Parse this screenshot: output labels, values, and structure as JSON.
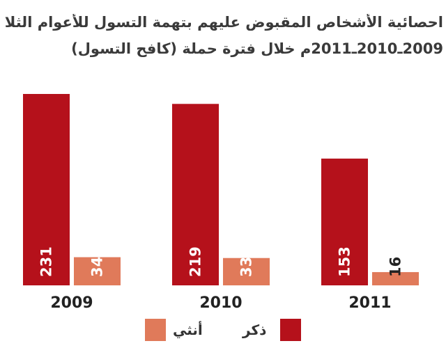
{
  "title_line1": "احصائية الأشخاص المقبوض عليهم بتهمة التسول للأعوام الثلاثة",
  "title_line2": "2009ـ2010ـ2011م خلال فترة حملة (كافح التسول)",
  "chart_data": {
    "type": "bar",
    "categories": [
      "2009",
      "2010",
      "2011"
    ],
    "series": [
      {
        "name": "ذكر",
        "values": [
          231,
          219,
          153
        ],
        "color": "#b5111b"
      },
      {
        "name": "أنثي",
        "values": [
          34,
          33,
          16
        ],
        "color": "#e07a5a"
      }
    ],
    "ylim": [
      0,
      245
    ],
    "grid": false,
    "legend_position": "bottom"
  }
}
